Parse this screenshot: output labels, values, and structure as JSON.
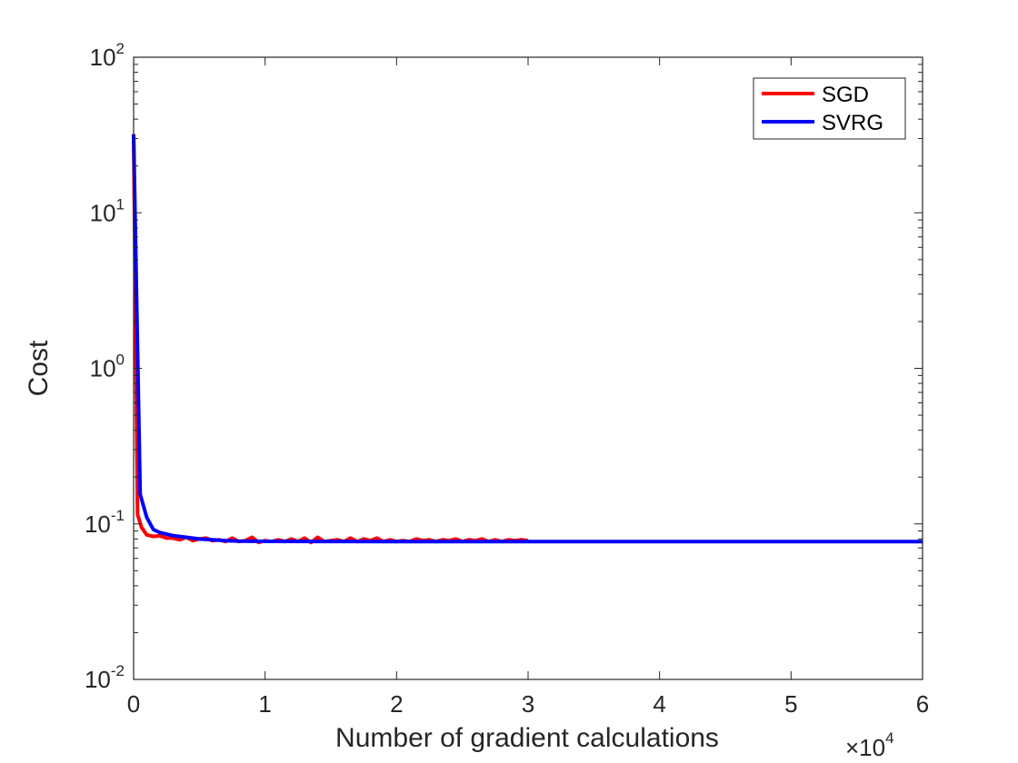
{
  "chart_data": {
    "type": "line",
    "title": "",
    "xlabel": "Number of gradient calculations",
    "ylabel": "Cost",
    "x_multiplier_label": {
      "base": "×10",
      "exponent": "4"
    },
    "xlim": [
      0,
      6
    ],
    "ylim": [
      0.01,
      100
    ],
    "yscale": "log",
    "grid": false,
    "legend_position": "top-right",
    "x_ticks": [
      {
        "value": 0,
        "label": "0"
      },
      {
        "value": 1,
        "label": "1"
      },
      {
        "value": 2,
        "label": "2"
      },
      {
        "value": 3,
        "label": "3"
      },
      {
        "value": 4,
        "label": "4"
      },
      {
        "value": 5,
        "label": "5"
      },
      {
        "value": 6,
        "label": "6"
      }
    ],
    "y_ticks": [
      {
        "value": 0.01,
        "base": "10",
        "exponent": "-2"
      },
      {
        "value": 0.1,
        "base": "10",
        "exponent": "-1"
      },
      {
        "value": 1,
        "base": "10",
        "exponent": "0"
      },
      {
        "value": 10,
        "base": "10",
        "exponent": "1"
      },
      {
        "value": 100,
        "base": "10",
        "exponent": "2"
      }
    ],
    "series": [
      {
        "name": "SGD",
        "color": "#ff0000",
        "x": [
          0,
          0.03,
          0.06,
          0.1,
          0.15,
          0.2,
          0.25,
          0.3,
          0.35,
          0.4,
          0.45,
          0.5,
          0.55,
          0.6,
          0.65,
          0.7,
          0.75,
          0.8,
          0.85,
          0.9,
          0.95,
          1.0,
          1.05,
          1.1,
          1.15,
          1.2,
          1.25,
          1.3,
          1.35,
          1.4,
          1.45,
          1.5,
          1.55,
          1.6,
          1.65,
          1.7,
          1.75,
          1.8,
          1.85,
          1.9,
          1.95,
          2.0,
          2.05,
          2.1,
          2.15,
          2.2,
          2.25,
          2.3,
          2.35,
          2.4,
          2.45,
          2.5,
          2.55,
          2.6,
          2.65,
          2.7,
          2.75,
          2.8,
          2.85,
          2.9,
          2.95,
          3.0
        ],
        "y": [
          32,
          0.115,
          0.095,
          0.085,
          0.083,
          0.084,
          0.081,
          0.081,
          0.079,
          0.082,
          0.078,
          0.08,
          0.081,
          0.078,
          0.079,
          0.077,
          0.081,
          0.077,
          0.078,
          0.082,
          0.076,
          0.078,
          0.077,
          0.079,
          0.077,
          0.08,
          0.077,
          0.081,
          0.076,
          0.082,
          0.077,
          0.078,
          0.079,
          0.077,
          0.081,
          0.077,
          0.08,
          0.078,
          0.081,
          0.077,
          0.079,
          0.077,
          0.078,
          0.077,
          0.08,
          0.078,
          0.079,
          0.077,
          0.079,
          0.078,
          0.08,
          0.077,
          0.079,
          0.078,
          0.08,
          0.077,
          0.079,
          0.077,
          0.079,
          0.078,
          0.079,
          0.078
        ]
      },
      {
        "name": "SVRG",
        "color": "#0000ff",
        "x": [
          0,
          0.05,
          0.1,
          0.15,
          0.2,
          0.3,
          0.4,
          0.5,
          0.6,
          0.7,
          0.8,
          1.0,
          1.5,
          2.0,
          3.0,
          4.0,
          5.0,
          6.0
        ],
        "y": [
          32,
          0.155,
          0.11,
          0.092,
          0.088,
          0.084,
          0.082,
          0.08,
          0.079,
          0.078,
          0.0775,
          0.0772,
          0.0771,
          0.077,
          0.077,
          0.077,
          0.077,
          0.077
        ]
      }
    ]
  }
}
